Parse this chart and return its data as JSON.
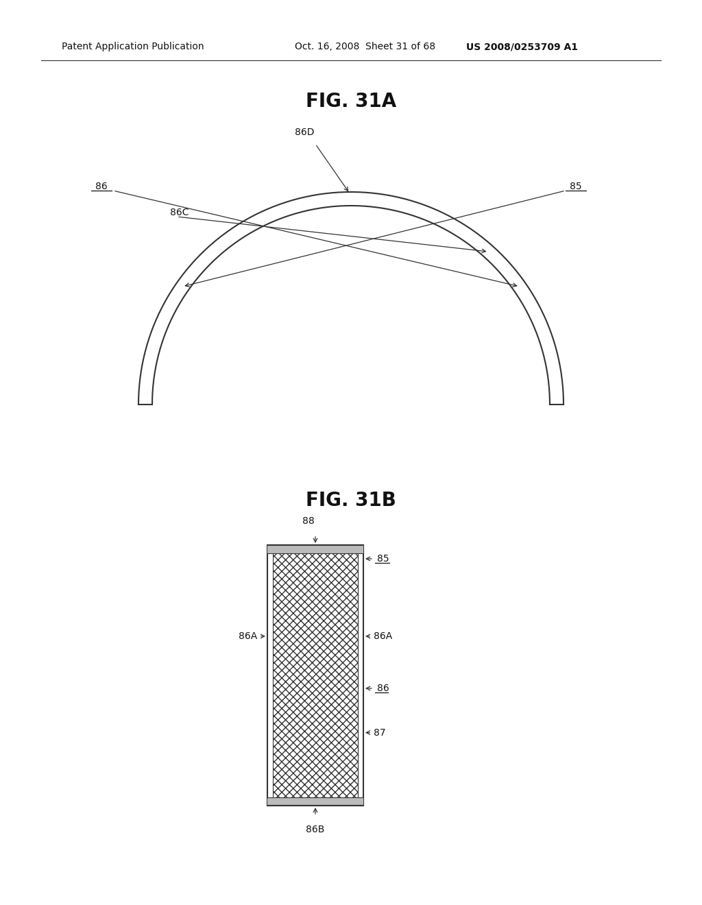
{
  "bg_color": "#ffffff",
  "header_text_left": "Patent Application Publication",
  "header_text_mid": "Oct. 16, 2008  Sheet 31 of 68",
  "header_text_right": "US 2008/0253709 A1",
  "fig31a_title": "FIG. 31A",
  "fig31b_title": "FIG. 31B",
  "header_fontsize": 10,
  "title_fontsize": 20,
  "label_fontsize": 10,
  "line_color": "#333333",
  "text_color": "#111111"
}
